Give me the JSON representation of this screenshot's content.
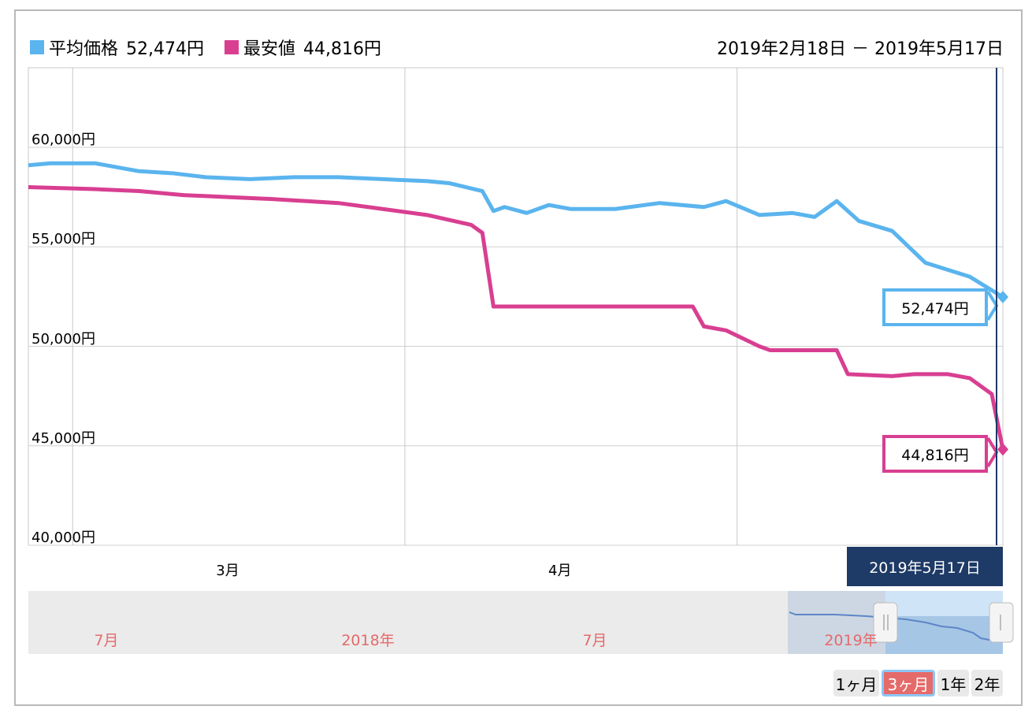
{
  "legend": {
    "avg_label": "平均価格",
    "avg_value": "52,474円",
    "min_label": "最安値",
    "min_value": "44,816円"
  },
  "date_range": "2019年2月18日 － 2019年5月17日",
  "cursor_date": "2019年5月17日",
  "callouts": {
    "avg": "52,474円",
    "min": "44,816円"
  },
  "navigator_labels": [
    "7月",
    "2018年",
    "7月",
    "2019年"
  ],
  "range_buttons": [
    "1ヶ月",
    "3ヶ月",
    "1年",
    "2年"
  ],
  "selected_range": "3ヶ月",
  "colors": {
    "avg": "#5ab4ee",
    "min": "#d83f91",
    "cursor": "#1e3a66",
    "nav_label": "#e56a6a"
  },
  "chart_data": {
    "type": "line",
    "title": "",
    "xlabel": "",
    "ylabel": "",
    "ylim": [
      40000,
      64000
    ],
    "y_ticks": [
      40000,
      45000,
      50000,
      55000,
      60000
    ],
    "y_tick_labels": [
      "40,000円",
      "45,000円",
      "50,000円",
      "55,000円",
      "60,000円"
    ],
    "x_ticks": [
      "2019-03-01",
      "2019-04-01"
    ],
    "x_tick_labels": [
      "3月",
      "4月"
    ],
    "xlim": [
      "2019-02-18",
      "2019-05-17"
    ],
    "grid": true,
    "legend_position": "top-left",
    "series": [
      {
        "name": "平均価格",
        "x": [
          "2019-02-18",
          "2019-02-20",
          "2019-02-24",
          "2019-02-28",
          "2019-03-03",
          "2019-03-06",
          "2019-03-10",
          "2019-03-14",
          "2019-03-18",
          "2019-03-22",
          "2019-03-26",
          "2019-03-28",
          "2019-03-31",
          "2019-04-01",
          "2019-04-02",
          "2019-04-04",
          "2019-04-06",
          "2019-04-08",
          "2019-04-12",
          "2019-04-16",
          "2019-04-20",
          "2019-04-22",
          "2019-04-25",
          "2019-04-28",
          "2019-04-30",
          "2019-05-02",
          "2019-05-04",
          "2019-05-07",
          "2019-05-10",
          "2019-05-14",
          "2019-05-17"
        ],
        "values": [
          59100,
          59200,
          59200,
          58800,
          58700,
          58500,
          58400,
          58500,
          58500,
          58400,
          58300,
          58200,
          57800,
          56800,
          57000,
          56700,
          57100,
          56900,
          56900,
          57200,
          57000,
          57300,
          56600,
          56700,
          56500,
          57300,
          56300,
          55800,
          54200,
          53500,
          52474
        ]
      },
      {
        "name": "最安値",
        "x": [
          "2019-02-18",
          "2019-02-24",
          "2019-02-28",
          "2019-03-04",
          "2019-03-08",
          "2019-03-12",
          "2019-03-18",
          "2019-03-22",
          "2019-03-26",
          "2019-03-30",
          "2019-03-31",
          "2019-04-01",
          "2019-04-06",
          "2019-04-12",
          "2019-04-19",
          "2019-04-20",
          "2019-04-22",
          "2019-04-25",
          "2019-04-26",
          "2019-05-02",
          "2019-05-03",
          "2019-05-07",
          "2019-05-09",
          "2019-05-12",
          "2019-05-14",
          "2019-05-16",
          "2019-05-17"
        ],
        "values": [
          58000,
          57900,
          57800,
          57600,
          57500,
          57400,
          57200,
          56900,
          56600,
          56100,
          55700,
          52000,
          52000,
          52000,
          52000,
          51000,
          50800,
          50000,
          49800,
          49800,
          48600,
          48500,
          48600,
          48600,
          48400,
          47600,
          44816
        ]
      }
    ]
  }
}
